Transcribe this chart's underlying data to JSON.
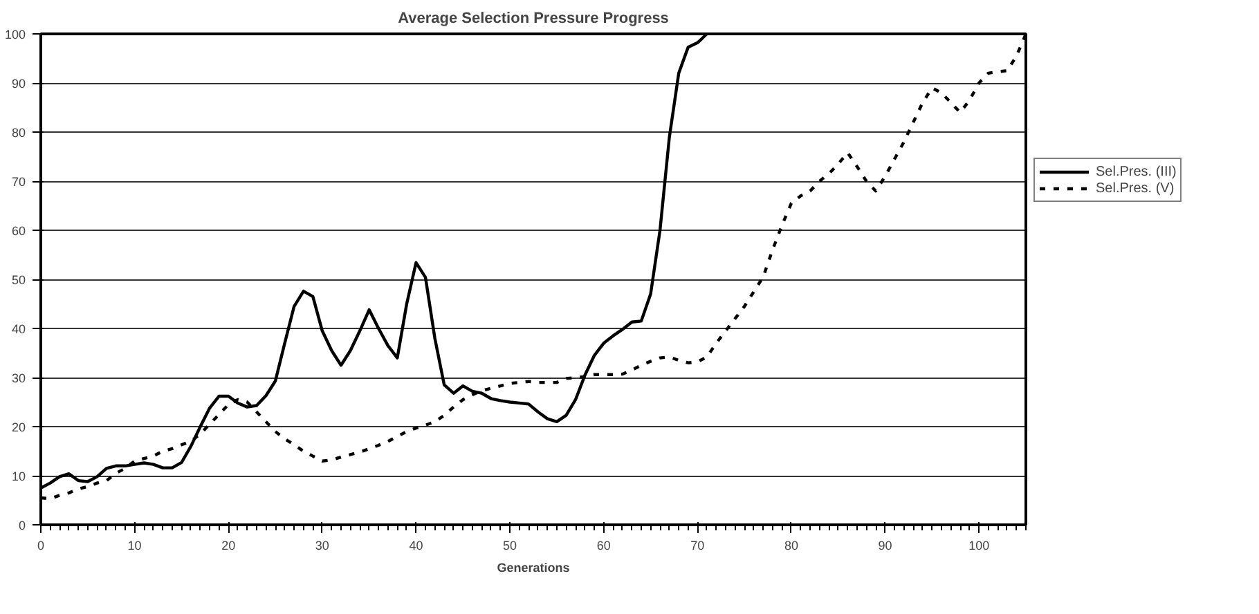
{
  "chart_data": {
    "type": "line",
    "title": "Average Selection Pressure Progress",
    "xlabel": "Generations",
    "xlim": [
      0,
      105
    ],
    "xticks": [
      0,
      10,
      20,
      30,
      40,
      50,
      60,
      70,
      80,
      90,
      100
    ],
    "ylim": [
      0,
      100
    ],
    "yticks": [
      0,
      10,
      20,
      30,
      40,
      50,
      60,
      70,
      80,
      90,
      100
    ],
    "grid": "y",
    "legend": "right",
    "marker": "none",
    "series": [
      {
        "name": "Sel.Pres. (III)",
        "color": "#000000",
        "line_style": "solid",
        "x": [
          0,
          1,
          2,
          3,
          4,
          5,
          6,
          7,
          8,
          9,
          10,
          11,
          12,
          13,
          14,
          15,
          16,
          17,
          18,
          19,
          20,
          21,
          22,
          23,
          24,
          25,
          26,
          27,
          28,
          29,
          30,
          31,
          32,
          33,
          34,
          35,
          36,
          37,
          38,
          39,
          40,
          41,
          42,
          43,
          44,
          45,
          46,
          47,
          48,
          49,
          50,
          51,
          52,
          53,
          54,
          55,
          56,
          57,
          58,
          59,
          60,
          61,
          62,
          63,
          64,
          65,
          66,
          67,
          68,
          69,
          70,
          71
        ],
        "values": [
          7.5,
          8.5,
          9.8,
          10.4,
          9,
          8.8,
          9.8,
          11.5,
          12,
          12,
          12.3,
          12.6,
          12.3,
          11.6,
          11.6,
          12.7,
          16,
          20,
          23.8,
          26.2,
          26.2,
          24.8,
          24,
          24.3,
          26.3,
          29.3,
          37,
          44.5,
          47.6,
          46.5,
          39.5,
          35.5,
          32.5,
          35.5,
          39.5,
          43.8,
          40,
          36.5,
          34,
          45,
          53.4,
          50.4,
          38,
          28.5,
          26.8,
          28.3,
          27.2,
          26.8,
          25.7,
          25.3,
          25,
          24.8,
          24.6,
          23,
          21.6,
          21,
          22.3,
          25.5,
          30.5,
          34.5,
          37,
          38.5,
          39.8,
          41.3,
          41.5,
          47,
          60,
          79,
          92,
          97.3,
          98.2,
          100
        ]
      },
      {
        "name": "Sel.Pres. (V)",
        "color": "#000000",
        "line_style": "dashed",
        "x": [
          0,
          1,
          2,
          3,
          4,
          5,
          6,
          7,
          8,
          9,
          10,
          11,
          12,
          13,
          14,
          15,
          16,
          17,
          18,
          19,
          20,
          21,
          22,
          23,
          24,
          25,
          26,
          27,
          28,
          29,
          30,
          31,
          32,
          33,
          34,
          35,
          36,
          37,
          38,
          39,
          40,
          41,
          42,
          43,
          44,
          45,
          46,
          47,
          48,
          49,
          50,
          51,
          52,
          53,
          54,
          55,
          56,
          57,
          58,
          59,
          60,
          61,
          62,
          63,
          64,
          65,
          66,
          67,
          68,
          69,
          70,
          71,
          72,
          73,
          74,
          75,
          76,
          77,
          78,
          79,
          80,
          81,
          82,
          83,
          84,
          85,
          86,
          87,
          88,
          89,
          90,
          91,
          92,
          93,
          94,
          95,
          96,
          97,
          98,
          99,
          100,
          101,
          102,
          103,
          104,
          105
        ],
        "values": [
          5.5,
          5.3,
          6,
          6.5,
          7.3,
          7.8,
          8.5,
          9,
          10.5,
          11.5,
          13,
          13.5,
          14,
          15,
          15.5,
          16.3,
          17,
          18.5,
          20.5,
          22.5,
          24.5,
          25.5,
          25,
          23,
          21,
          19,
          17.5,
          16.3,
          15,
          14,
          13,
          13.2,
          13.8,
          14.3,
          14.8,
          15.5,
          16.2,
          17,
          18,
          19,
          19.7,
          20.3,
          21,
          22.3,
          24,
          25.5,
          26.5,
          27.3,
          27.8,
          28.3,
          28.8,
          29,
          29.2,
          29,
          29,
          29,
          29.8,
          30,
          30.2,
          30.6,
          30.6,
          30.6,
          30.7,
          31.5,
          32.5,
          33.3,
          34,
          34.2,
          33.5,
          33,
          33.2,
          34.2,
          37,
          39.5,
          42,
          44.5,
          47.5,
          50.5,
          56,
          61,
          65.5,
          67,
          68,
          70,
          71.5,
          73.5,
          75.8,
          73,
          70,
          68,
          71,
          74.5,
          78,
          82,
          86,
          89,
          88,
          86,
          84,
          86.5,
          90,
          92,
          92.3,
          92.5,
          95.5,
          100
        ]
      }
    ]
  }
}
